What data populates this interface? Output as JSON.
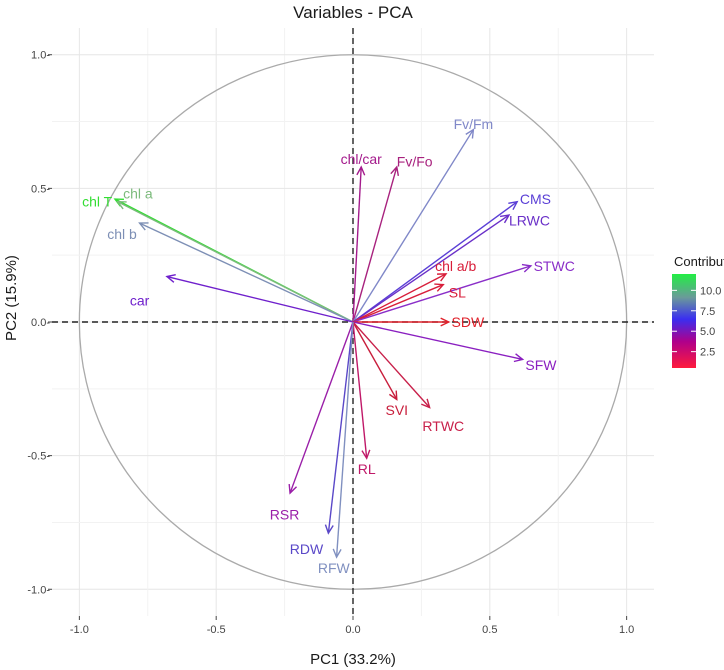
{
  "chart_data": {
    "type": "scatter",
    "title": "Variables - PCA",
    "xlabel": "PC1 (33.2%)",
    "ylabel": "PC2 (15.9%)",
    "xlim": [
      -1.1,
      1.1
    ],
    "ylim": [
      -1.1,
      1.1
    ],
    "xticks": [
      -1.0,
      -0.5,
      0.0,
      0.5,
      1.0
    ],
    "xtick_labels": [
      "-1.0",
      "-0.5",
      "0.0",
      "0.5",
      "1.0"
    ],
    "yticks": [
      -1.0,
      -0.5,
      0.0,
      0.5,
      1.0
    ],
    "ytick_labels": [
      "-1.0-",
      "-0.5-",
      "0.0-",
      "0.5-",
      "1.0-"
    ],
    "grid": true,
    "correlation_circle": true,
    "legend": {
      "title": "Contribution",
      "placement": "right",
      "range": [
        0.5,
        12.0
      ],
      "ticks": [
        2.5,
        5.0,
        7.5,
        10.0
      ],
      "tick_labels": [
        "2.5",
        "5.0",
        "7.5",
        "10.0"
      ],
      "gradient": [
        "#ff1a3c",
        "#b0008a",
        "#3a2ef0",
        "#6a9a9a",
        "#22ee44"
      ]
    },
    "variables": [
      {
        "label": "chl T",
        "x": -0.87,
        "y": 0.46,
        "color": "#33dd33"
      },
      {
        "label": "chl a",
        "x": -0.86,
        "y": 0.45,
        "color": "#7cbb7c"
      },
      {
        "label": "chl b",
        "x": -0.78,
        "y": 0.37,
        "color": "#7d8fb5"
      },
      {
        "label": "car",
        "x": -0.68,
        "y": 0.17,
        "color": "#6f20cc"
      },
      {
        "label": "chl/car",
        "x": 0.03,
        "y": 0.58,
        "color": "#a41a8c"
      },
      {
        "label": "Fv/Fo",
        "x": 0.16,
        "y": 0.58,
        "color": "#a8227e"
      },
      {
        "label": "Fv/Fm",
        "x": 0.44,
        "y": 0.72,
        "color": "#8088c8"
      },
      {
        "label": "CMS",
        "x": 0.6,
        "y": 0.45,
        "color": "#5a3fd6"
      },
      {
        "label": "LRWC",
        "x": 0.57,
        "y": 0.4,
        "color": "#6a30c8"
      },
      {
        "label": "chl a/b",
        "x": 0.34,
        "y": 0.18,
        "color": "#d81e3a"
      },
      {
        "label": "SL",
        "x": 0.33,
        "y": 0.14,
        "color": "#d81e3a"
      },
      {
        "label": "STWC",
        "x": 0.65,
        "y": 0.21,
        "color": "#8a2ec8"
      },
      {
        "label": "SDW",
        "x": 0.35,
        "y": 0.0,
        "color": "#e0202a"
      },
      {
        "label": "SFW",
        "x": 0.62,
        "y": -0.14,
        "color": "#8a1fc0"
      },
      {
        "label": "SVI",
        "x": 0.16,
        "y": -0.29,
        "color": "#c81e3c"
      },
      {
        "label": "RTWC",
        "x": 0.28,
        "y": -0.32,
        "color": "#c8204a"
      },
      {
        "label": "RL",
        "x": 0.05,
        "y": -0.51,
        "color": "#c01868"
      },
      {
        "label": "RSR",
        "x": -0.23,
        "y": -0.64,
        "color": "#9a1fa8"
      },
      {
        "label": "RDW",
        "x": -0.09,
        "y": -0.79,
        "color": "#5a48c8"
      },
      {
        "label": "RFW",
        "x": -0.06,
        "y": -0.88,
        "color": "#8090c0"
      }
    ]
  }
}
